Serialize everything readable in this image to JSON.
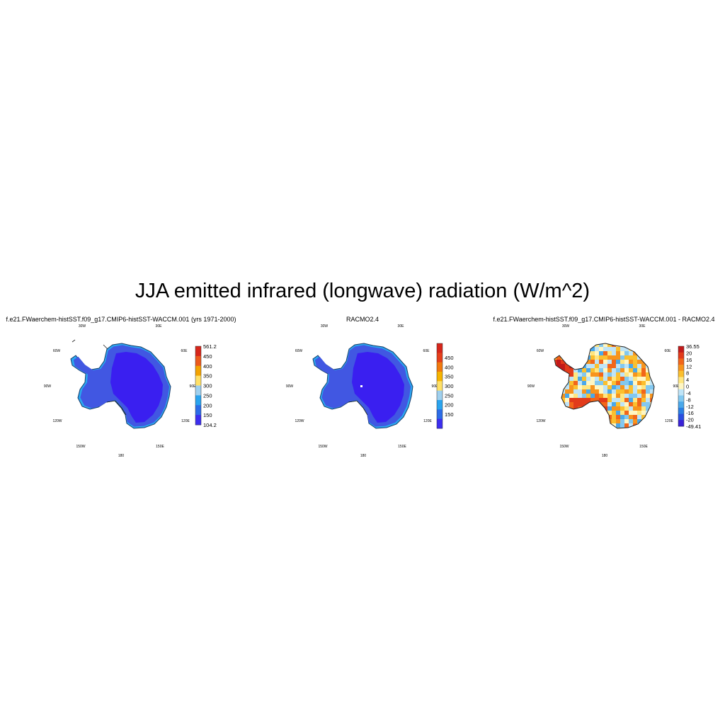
{
  "figure": {
    "title": "JJA emitted infrared (longwave) radiation (W/m^2)"
  },
  "panels": [
    {
      "id": "model",
      "title": "f.e21.FWaerchem-histSST.f09_g17.CMIP6-histSST-WACCM.001 (yrs 1971-2000)",
      "colorbar_labels": [
        "561.2",
        "450",
        "400",
        "350",
        "300",
        "250",
        "200",
        "150",
        "104.2"
      ],
      "colorbar_colors": [
        "#d7261b",
        "#ec5a1c",
        "#f4a300",
        "#ffe066",
        "#9fd0ee",
        "#2aa4ef",
        "#2c6ce8",
        "#3c2ef0"
      ]
    },
    {
      "id": "obs",
      "title": "RACMO2.4",
      "colorbar_labels": [
        "450",
        "400",
        "350",
        "300",
        "250",
        "200",
        "150"
      ],
      "colorbar_colors": [
        "#d7261b",
        "#e6401b",
        "#f27a0f",
        "#f6b400",
        "#ffe066",
        "#9fd0ee",
        "#2aa4ef",
        "#2c6ce8",
        "#3c2ef0"
      ]
    },
    {
      "id": "diff",
      "title": "f.e21.FWaerchem-histSST.f09_g17.CMIP6-histSST-WACCM.001 - RACMO2.4",
      "colorbar_labels": [
        "36.55",
        "20",
        "16",
        "12",
        "8",
        "4",
        "0",
        "-4",
        "-8",
        "-12",
        "-16",
        "-20",
        "-49.41"
      ],
      "colorbar_colors": [
        "#c21a1a",
        "#e23b1b",
        "#f2661a",
        "#f7941d",
        "#fbbf2e",
        "#ffe680",
        "#fff6c2",
        "#bfe4f7",
        "#82c8f0",
        "#4aa8ea",
        "#2b7fe3",
        "#2a4fe0",
        "#3a22d8"
      ]
    }
  ],
  "longitude_labels": [
    "30W",
    "30E",
    "60W",
    "60E",
    "90W",
    "90E",
    "120W",
    "120E",
    "150W",
    "150E",
    "180"
  ],
  "colors": {
    "ice_interior": "#3a1ff0",
    "ice_margin": "#4157e2",
    "coast_band": "#2aa8f0",
    "diff_warm": "#f7941d",
    "diff_cool": "#82c8f0"
  }
}
